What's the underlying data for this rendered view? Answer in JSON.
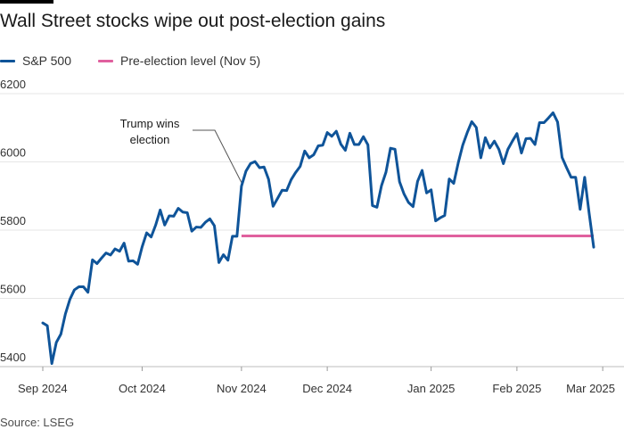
{
  "title": "Wall Street stocks wipe out post-election gains",
  "source": "Source: LSEG",
  "legend": [
    {
      "label": "S&P 500",
      "color": "#0f5499"
    },
    {
      "label": "Pre-election level (Nov 5)",
      "color": "#e0609e"
    }
  ],
  "annotation": {
    "line1": "Trump wins",
    "line2": "election"
  },
  "chart_data": {
    "type": "line",
    "title": "Wall Street stocks wipe out post-election gains",
    "xlabel": "",
    "ylabel": "",
    "ylim": [
      5400,
      6200
    ],
    "yticks": [
      5400,
      5600,
      5800,
      6000,
      6200
    ],
    "xtick_labels": [
      "Sep 2024",
      "Oct 2024",
      "Nov 2024",
      "Dec 2024",
      "Jan 2025",
      "Feb 2025",
      "Mar 2025"
    ],
    "xtick_index": [
      0,
      22,
      44,
      63,
      86,
      105,
      124
    ],
    "election_index": 44,
    "series": [
      {
        "name": "S&P 500",
        "color": "#0f5499",
        "values": [
          5528,
          5520,
          5409,
          5471,
          5495,
          5554,
          5597,
          5625,
          5634,
          5634,
          5618,
          5713,
          5702,
          5718,
          5733,
          5727,
          5745,
          5738,
          5762,
          5709,
          5710,
          5700,
          5751,
          5792,
          5780,
          5815,
          5859,
          5815,
          5842,
          5841,
          5864,
          5853,
          5851,
          5797,
          5809,
          5808,
          5823,
          5833,
          5813,
          5705,
          5728,
          5712,
          5782,
          5782,
          5929,
          5973,
          5995,
          6001,
          5983,
          5985,
          5949,
          5870,
          5893,
          5917,
          5916,
          5948,
          5969,
          5987,
          6032,
          6012,
          6021,
          6047,
          6049,
          6086,
          6075,
          6090,
          6052,
          6034,
          6084,
          6051,
          6051,
          6074,
          6050,
          5872,
          5867,
          5930,
          5970,
          6040,
          6037,
          5942,
          5906,
          5881,
          5869,
          5943,
          5975,
          5909,
          5918,
          5827,
          5836,
          5843,
          5950,
          5937,
          5997,
          6049,
          6086,
          6118,
          6101,
          6012,
          6071,
          6041,
          6061,
          6037,
          5995,
          6037,
          6061,
          6083,
          6026,
          6068,
          6069,
          6051,
          6115,
          6115,
          6129,
          6144,
          6117,
          6013,
          5983,
          5955,
          5955,
          5861,
          5955,
          5849,
          5750
        ]
      },
      {
        "name": "Pre-election level (Nov 5)",
        "color": "#e0609e",
        "values": [
          5783,
          5783
        ]
      }
    ]
  }
}
